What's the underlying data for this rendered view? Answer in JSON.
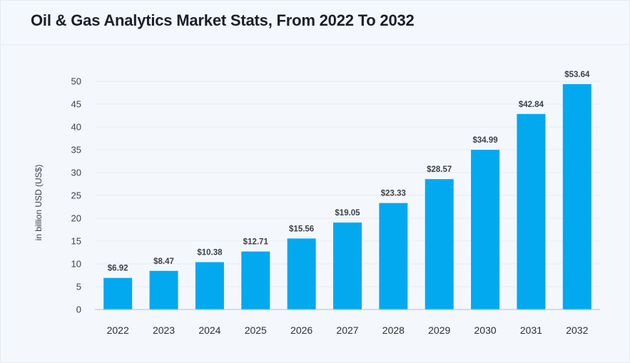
{
  "header": {
    "title": "Oil & Gas Analytics Market Stats, From 2022 To 2032"
  },
  "colors": {
    "bar": "#03a9ee",
    "grid": "#e6ebf1",
    "axis": "#b8bec7"
  },
  "chart_data": {
    "type": "bar",
    "title": "Oil & Gas Analytics Market Stats, From 2022 To 2032",
    "xlabel": "",
    "ylabel": "in billion USD (US$)",
    "ylim": [
      0,
      50
    ],
    "yticks": [
      0,
      5,
      10,
      15,
      20,
      25,
      30,
      35,
      40,
      45,
      50
    ],
    "grid": true,
    "categories": [
      "2022",
      "2023",
      "2024",
      "2025",
      "2026",
      "2027",
      "2028",
      "2029",
      "2030",
      "2031",
      "2032"
    ],
    "values": [
      6.92,
      8.47,
      10.38,
      12.71,
      15.56,
      19.05,
      23.33,
      28.57,
      34.99,
      42.84,
      53.64
    ],
    "data_labels": [
      "$6.92",
      "$8.47",
      "$10.38",
      "$12.71",
      "$15.56",
      "$19.05",
      "$23.33",
      "$28.57",
      "$34.99",
      "$42.84",
      "$53.64"
    ]
  }
}
